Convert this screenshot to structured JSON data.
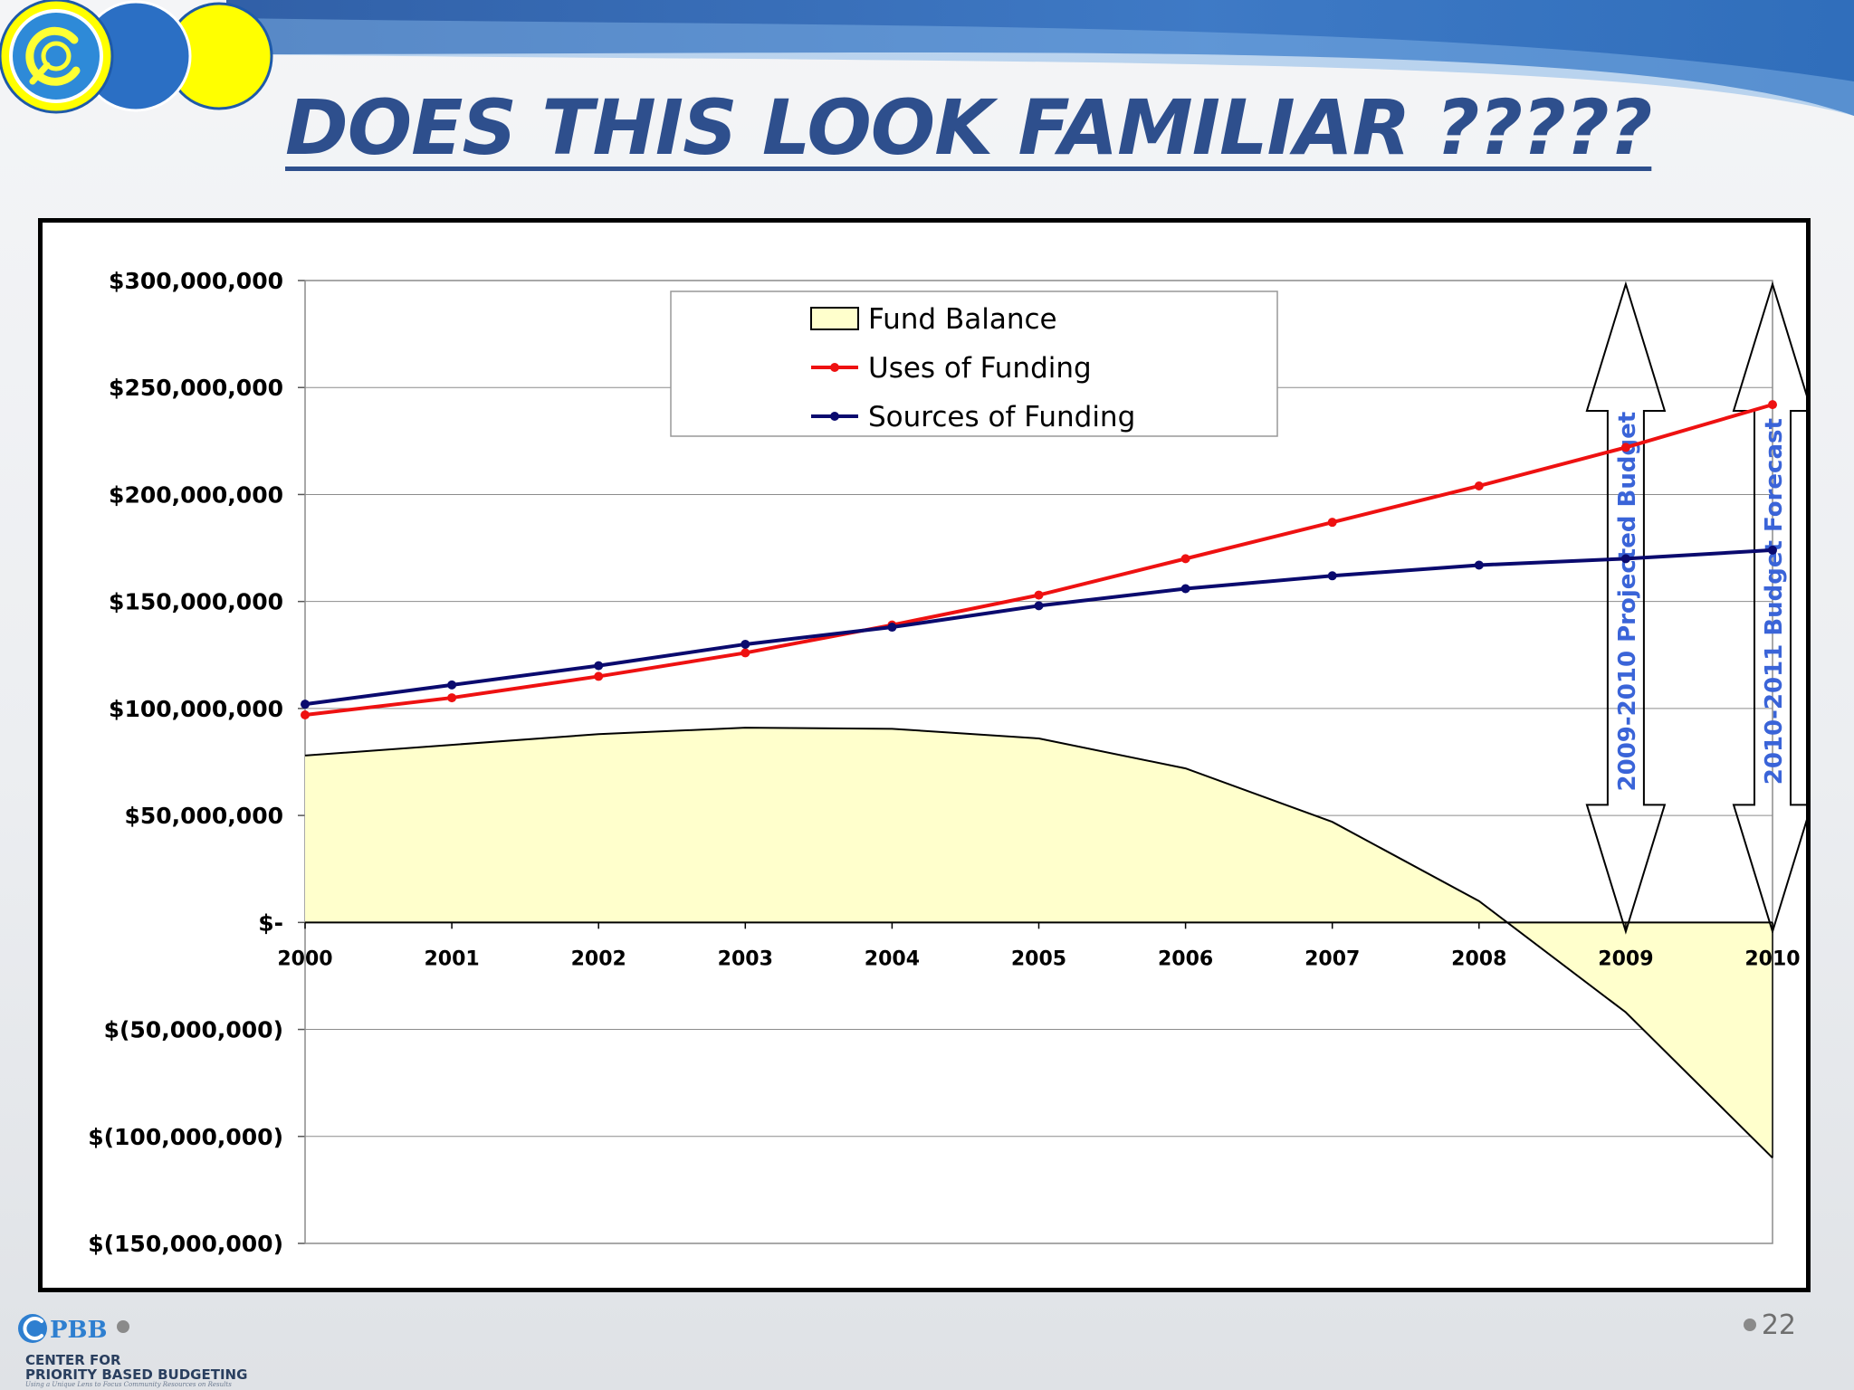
{
  "slide": {
    "title": "DOES THIS LOOK FAMILIAR ?????",
    "page_number": "22"
  },
  "footer_logo": {
    "mark": "PBB",
    "line1": "CENTER FOR",
    "line2": "PRIORITY BASED BUDGETING",
    "tagline": "Using a Unique Lens to Focus Community Resources on Results"
  },
  "colors": {
    "title": "#2e4f8d",
    "fund_balance_fill": "#ffffcc",
    "uses": "#ee1111",
    "sources": "#0a0a6e",
    "annotation": "#3a64d8"
  },
  "chart_data": {
    "type": "line",
    "x": [
      2000,
      2001,
      2002,
      2003,
      2004,
      2005,
      2006,
      2007,
      2008,
      2009,
      2010
    ],
    "ylim": [
      -150000000,
      300000000
    ],
    "y_ticks": [
      300000000,
      250000000,
      200000000,
      150000000,
      100000000,
      50000000,
      0,
      -50000000,
      -100000000,
      -150000000
    ],
    "y_tick_labels": [
      "$300,000,000",
      "$250,000,000",
      "$200,000,000",
      "$150,000,000",
      "$100,000,000",
      "$50,000,000",
      "$-",
      "$(50,000,000)",
      "$(100,000,000)",
      "$(150,000,000)"
    ],
    "x_tick_labels": [
      "2000",
      "2001",
      "2002",
      "2003",
      "2004",
      "2005",
      "2006",
      "2007",
      "2008",
      "2009",
      "2010"
    ],
    "grid": true,
    "legend_position": "top-center",
    "series": [
      {
        "name": "Fund Balance",
        "style": "area",
        "values": [
          78000000,
          83000000,
          88000000,
          91000000,
          90500000,
          86000000,
          72000000,
          47000000,
          10000000,
          -42000000,
          -110000000
        ]
      },
      {
        "name": "Uses of Funding",
        "style": "line-markers",
        "values": [
          97000000,
          105000000,
          115000000,
          126000000,
          139000000,
          153000000,
          170000000,
          187000000,
          204000000,
          222000000,
          242000000
        ]
      },
      {
        "name": "Sources of Funding",
        "style": "line-markers",
        "values": [
          102000000,
          111000000,
          120000000,
          130000000,
          138000000,
          148000000,
          156000000,
          162000000,
          167000000,
          170000000,
          174000000
        ]
      }
    ],
    "annotations": [
      {
        "x": 2009,
        "label": "2009-2010 Projected Budget"
      },
      {
        "x": 2010,
        "label": "2010-2011  Budget Forecast"
      }
    ]
  }
}
